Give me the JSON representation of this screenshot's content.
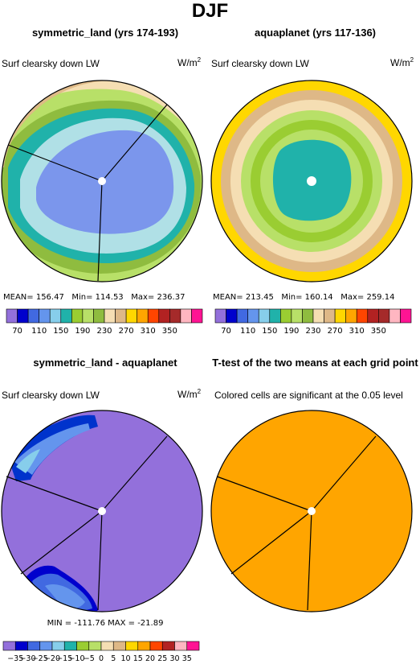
{
  "title": "DJF",
  "variable_label": "Surf clearsky down LW",
  "units_base": "W/m",
  "units_exp": "2",
  "palettes": {
    "absolute": [
      "#9370db",
      "#0000cd",
      "#4169e1",
      "#6495ed",
      "#87ceeb",
      "#20b2aa",
      "#9acd32",
      "#b8e068",
      "#8fbc3f",
      "#f5deb3",
      "#deb887",
      "#ffd700",
      "#ffa500",
      "#ff4500",
      "#b22222",
      "#a52a2a",
      "#ffb6c1",
      "#ff1493"
    ],
    "diff": [
      "#9370db",
      "#0000cd",
      "#4169e1",
      "#6495ed",
      "#87ceeb",
      "#20b2aa",
      "#9acd32",
      "#b8e068",
      "#f5deb3",
      "#deb887",
      "#ffd700",
      "#ffa500",
      "#ff4500",
      "#b22222",
      "#ffb6c1",
      "#ff1493"
    ],
    "significant": "#ffa500"
  },
  "panels": [
    {
      "title": "symmetric_land (yrs 174-193)",
      "stats": {
        "mean": "156.47",
        "min": "114.53",
        "max": "236.37"
      },
      "colorbar_labels": [
        "70",
        "110",
        "150",
        "190",
        "230",
        "270",
        "310",
        "350"
      ]
    },
    {
      "title": "aquaplanet (yrs 117-136)",
      "stats": {
        "mean": "213.45",
        "min": "160.14",
        "max": "259.14"
      },
      "colorbar_labels": [
        "70",
        "110",
        "150",
        "190",
        "230",
        "270",
        "310",
        "350"
      ]
    },
    {
      "title": "symmetric_land - aquaplanet",
      "stats_text": "MIN = -111.76  MAX = -21.89",
      "colorbar_labels": [
        "-35",
        "-30",
        "-25",
        "-20",
        "-15",
        "-10",
        "-5",
        "0",
        "5",
        "10",
        "15",
        "20",
        "25",
        "30",
        "35"
      ]
    },
    {
      "title": "T-test of the two means at each grid point",
      "note": "Colored cells are significant at the 0.05 level"
    }
  ],
  "chart_data": [
    {
      "type": "heatmap",
      "projection": "polar",
      "title": "symmetric_land (yrs 174-193)",
      "variable": "Surf clearsky down LW",
      "units": "W/m2",
      "levels": [
        70,
        90,
        110,
        130,
        150,
        170,
        190,
        210,
        230,
        250,
        270,
        290,
        310,
        330,
        350
      ],
      "summary": {
        "mean": 156.47,
        "min": 114.53,
        "max": 236.37
      }
    },
    {
      "type": "heatmap",
      "projection": "polar",
      "title": "aquaplanet (yrs 117-136)",
      "variable": "Surf clearsky down LW",
      "units": "W/m2",
      "levels": [
        70,
        90,
        110,
        130,
        150,
        170,
        190,
        210,
        230,
        250,
        270,
        290,
        310,
        330,
        350
      ],
      "summary": {
        "mean": 213.45,
        "min": 160.14,
        "max": 259.14
      }
    },
    {
      "type": "heatmap",
      "projection": "polar",
      "title": "symmetric_land - aquaplanet",
      "variable": "Surf clearsky down LW",
      "units": "W/m2",
      "levels": [
        -35,
        -30,
        -25,
        -20,
        -15,
        -10,
        -5,
        0,
        5,
        10,
        15,
        20,
        25,
        30,
        35
      ],
      "summary": {
        "min": -111.76,
        "max": -21.89
      }
    },
    {
      "type": "heatmap",
      "projection": "polar",
      "title": "T-test of the two means at each grid point",
      "note": "Colored cells are significant at the 0.05 level",
      "significance_level": 0.05
    }
  ]
}
